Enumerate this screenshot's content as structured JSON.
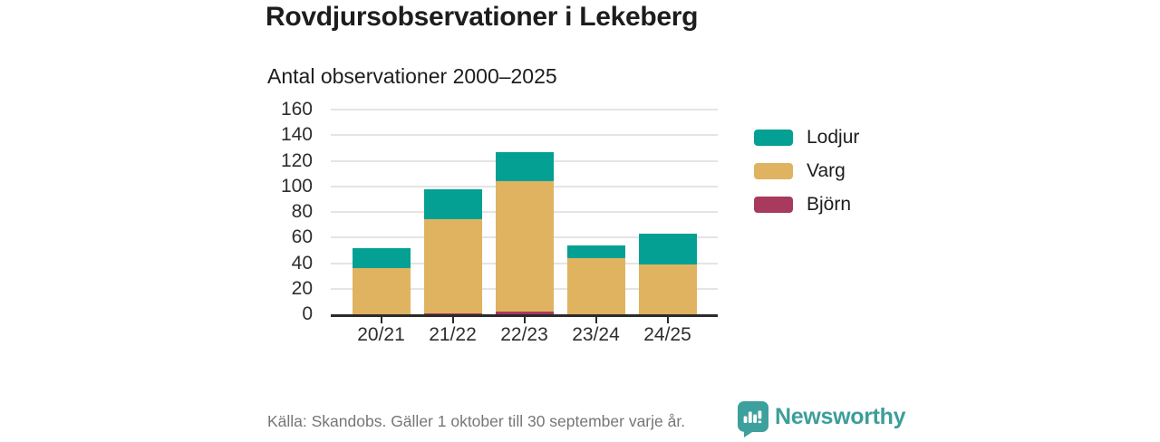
{
  "title": "Rovdjursobservationer i Lekeberg",
  "subtitle": "Antal observationer 2000–2025",
  "footer": {
    "source": "Källa: Skandobs. Gäller 1 oktober till 30 september varje år.",
    "brand": "Newsworthy"
  },
  "colors": {
    "lodjur": "#04a094",
    "varg": "#dfb35f",
    "bjorn": "#a83a5e",
    "brand_teal": "#3d9e9a",
    "axis": "#2b2b2b",
    "grid": "#e4e4e4",
    "muted_text": "#767676"
  },
  "chart_data": {
    "type": "bar",
    "stacked": true,
    "title": "Rovdjursobservationer i Lekeberg",
    "subtitle": "Antal observationer 2000–2025",
    "xlabel": "",
    "ylabel": "Antal observationer",
    "categories": [
      "20/21",
      "21/22",
      "22/23",
      "23/24",
      "24/25"
    ],
    "series": [
      {
        "name": "Björn",
        "color": "#a83a5e",
        "values": [
          0,
          1,
          2,
          0,
          0
        ]
      },
      {
        "name": "Varg",
        "color": "#dfb35f",
        "values": [
          36,
          73,
          102,
          44,
          39
        ]
      },
      {
        "name": "Lodjur",
        "color": "#04a094",
        "values": [
          16,
          24,
          23,
          10,
          24
        ]
      }
    ],
    "totals": [
      52,
      98,
      127,
      54,
      63
    ],
    "ylim": [
      0,
      160
    ],
    "ytick_step": 20,
    "grid": true,
    "legend_position": "right",
    "legend_order_top_to_bottom": [
      "Lodjur",
      "Varg",
      "Björn"
    ]
  },
  "legend": {
    "items": [
      {
        "label": "Lodjur",
        "color": "#04a094"
      },
      {
        "label": "Varg",
        "color": "#dfb35f"
      },
      {
        "label": "Björn",
        "color": "#a83a5e"
      }
    ]
  }
}
